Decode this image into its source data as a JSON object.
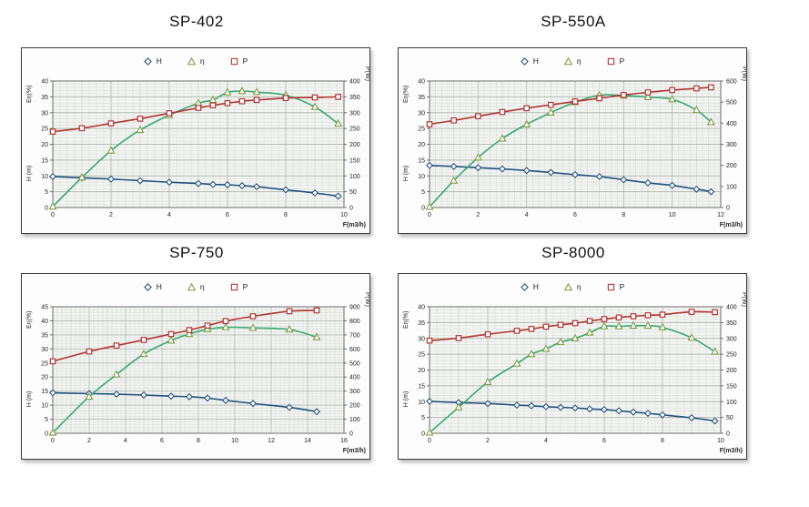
{
  "colors": {
    "h_line": "#24527f",
    "h_marker": "#24527f",
    "eta_line": "#36a873",
    "eta_marker": "#7d9b3e",
    "p_line": "#b23430",
    "p_marker": "#b23430",
    "plot_bg": "#f3f5f2",
    "plot_border": "#6b6b6b",
    "grid_minor": "#d9dcd8",
    "grid_unit": "#c6cac4",
    "grid_major": "#b2b8b0",
    "text": "#222222"
  },
  "chart_data": [
    {
      "type": "line",
      "title": "SP-402",
      "legend": [
        {
          "name": "H",
          "marker": "diamond"
        },
        {
          "name": "η",
          "marker": "triangle"
        },
        {
          "name": "P",
          "marker": "square"
        }
      ],
      "legend_position": "top-center",
      "grid": true,
      "x_axis": {
        "label": "F(m3/h)",
        "min": 0,
        "max": 10,
        "ticks": [
          0,
          2,
          4,
          6,
          8,
          10
        ],
        "minor_step": 0.25
      },
      "y_left_axis": {
        "label_top": "Eη(%)",
        "label_bottom": "H (m)",
        "min": 0,
        "max": 40,
        "ticks": [
          0,
          5,
          10,
          15,
          20,
          25,
          30,
          35,
          40
        ],
        "minor_step": 1
      },
      "y_right_axis": {
        "label": "P(W)",
        "min": 0,
        "max": 400,
        "ticks": [
          0,
          50,
          100,
          150,
          200,
          250,
          300,
          350,
          400
        ]
      },
      "series": [
        {
          "name": "H",
          "axis": "left",
          "marker": "diamond",
          "color_key": "h",
          "x": [
            0,
            1,
            2,
            3,
            4,
            5,
            5.5,
            6,
            6.5,
            7,
            8,
            9,
            9.8
          ],
          "y": [
            9.8,
            9.4,
            9.0,
            8.5,
            8.0,
            7.6,
            7.3,
            7.2,
            6.9,
            6.6,
            5.6,
            4.6,
            3.6
          ]
        },
        {
          "name": "η",
          "axis": "left",
          "marker": "triangle",
          "color_key": "eta",
          "x": [
            0,
            1,
            2,
            3,
            4,
            5,
            5.5,
            6,
            6.5,
            7,
            8,
            9,
            9.8
          ],
          "y": [
            0.3,
            9.5,
            18.0,
            24.5,
            29.2,
            33.0,
            34.0,
            36.4,
            36.8,
            36.5,
            35.5,
            31.8,
            26.5
          ]
        },
        {
          "name": "P",
          "axis": "right",
          "marker": "square",
          "color_key": "p",
          "x": [
            0,
            1,
            2,
            3,
            4,
            5,
            5.5,
            6,
            6.5,
            7,
            8,
            9,
            9.8
          ],
          "y": [
            240,
            251,
            266,
            281,
            298,
            315,
            323,
            330,
            336,
            340,
            346,
            348,
            350
          ]
        }
      ]
    },
    {
      "type": "line",
      "title": "SP-550A",
      "legend": [
        {
          "name": "H",
          "marker": "diamond"
        },
        {
          "name": "η",
          "marker": "triangle"
        },
        {
          "name": "P",
          "marker": "square"
        }
      ],
      "legend_position": "top-center",
      "grid": true,
      "x_axis": {
        "label": "F(m3/h)",
        "min": 0,
        "max": 12,
        "ticks": [
          0,
          2,
          4,
          6,
          8,
          10,
          12
        ],
        "minor_step": 0.25
      },
      "y_left_axis": {
        "label_top": "Eη(%)",
        "label_bottom": "H (m)",
        "min": 0,
        "max": 40,
        "ticks": [
          0,
          5,
          10,
          15,
          20,
          25,
          30,
          35,
          40
        ],
        "minor_step": 1
      },
      "y_right_axis": {
        "label": "P(W)",
        "min": 0,
        "max": 600,
        "ticks": [
          0,
          100,
          200,
          300,
          400,
          500,
          600
        ]
      },
      "series": [
        {
          "name": "H",
          "axis": "left",
          "marker": "diamond",
          "color_key": "h",
          "x": [
            0,
            1,
            2,
            3,
            4,
            5,
            6,
            7,
            8,
            9,
            10,
            11,
            11.6
          ],
          "y": [
            13.3,
            13.0,
            12.6,
            12.2,
            11.7,
            11.1,
            10.4,
            9.8,
            8.8,
            7.8,
            7.0,
            5.8,
            5.0
          ]
        },
        {
          "name": "η",
          "axis": "left",
          "marker": "triangle",
          "color_key": "eta",
          "x": [
            0,
            1,
            2,
            3,
            4,
            5,
            6,
            7,
            8,
            9,
            10,
            11,
            11.6
          ],
          "y": [
            0.2,
            8.5,
            15.8,
            21.8,
            26.3,
            30.0,
            33.3,
            35.5,
            35.4,
            34.9,
            34.2,
            30.8,
            27.0
          ]
        },
        {
          "name": "P",
          "axis": "right",
          "marker": "square",
          "color_key": "p",
          "x": [
            0,
            1,
            2,
            3,
            4,
            5,
            6,
            7,
            8,
            9,
            10,
            11,
            11.6
          ],
          "y": [
            395,
            413,
            433,
            453,
            471,
            487,
            503,
            518,
            534,
            546,
            557,
            565,
            570
          ]
        }
      ]
    },
    {
      "type": "line",
      "title": "SP-750",
      "legend": [
        {
          "name": "H",
          "marker": "diamond"
        },
        {
          "name": "η",
          "marker": "triangle"
        },
        {
          "name": "P",
          "marker": "square"
        }
      ],
      "legend_position": "top-center",
      "grid": true,
      "x_axis": {
        "label": "F(m3/h)",
        "min": 0,
        "max": 16,
        "ticks": [
          0,
          2,
          4,
          6,
          8,
          10,
          12,
          14,
          16
        ],
        "minor_step": 0.25
      },
      "y_left_axis": {
        "label_top": "Eη(%)",
        "label_bottom": "H (m)",
        "min": 0,
        "max": 45,
        "ticks": [
          0,
          5,
          10,
          15,
          20,
          25,
          30,
          35,
          40,
          45
        ],
        "minor_step": 1
      },
      "y_right_axis": {
        "label": "P(W)",
        "min": 0,
        "max": 900,
        "ticks": [
          0,
          100,
          200,
          300,
          400,
          500,
          600,
          700,
          800,
          900
        ]
      },
      "series": [
        {
          "name": "H",
          "axis": "left",
          "marker": "diamond",
          "color_key": "h",
          "x": [
            0,
            2,
            3.5,
            5,
            6.5,
            7.5,
            8.5,
            9.5,
            11,
            13,
            14.5
          ],
          "y": [
            14.4,
            14.1,
            13.9,
            13.6,
            13.2,
            13.0,
            12.5,
            11.7,
            10.6,
            9.2,
            7.7
          ]
        },
        {
          "name": "η",
          "axis": "left",
          "marker": "triangle",
          "color_key": "eta",
          "x": [
            0,
            2,
            3.5,
            5,
            6.5,
            7.5,
            8.5,
            9.5,
            11,
            13,
            14.5
          ],
          "y": [
            0.2,
            13.0,
            20.9,
            28.2,
            33.0,
            35.3,
            37.0,
            37.7,
            37.5,
            36.9,
            34.2
          ]
        },
        {
          "name": "P",
          "axis": "right",
          "marker": "square",
          "color_key": "p",
          "x": [
            0,
            2,
            3.5,
            5,
            6.5,
            7.5,
            8.5,
            9.5,
            11,
            13,
            14.5
          ],
          "y": [
            512,
            582,
            624,
            664,
            706,
            734,
            766,
            798,
            832,
            868,
            874
          ]
        }
      ]
    },
    {
      "type": "line",
      "title": "SP-8000",
      "legend": [
        {
          "name": "H",
          "marker": "diamond"
        },
        {
          "name": "η",
          "marker": "triangle"
        },
        {
          "name": "P",
          "marker": "square"
        }
      ],
      "legend_position": "top-center",
      "grid": true,
      "x_axis": {
        "label": "F(m3/h)",
        "min": 0,
        "max": 10,
        "ticks": [
          0,
          2,
          4,
          6,
          8,
          10
        ],
        "minor_step": 0.25
      },
      "y_left_axis": {
        "label_top": "Eη(%)",
        "label_bottom": "H (m)",
        "min": 0,
        "max": 40,
        "ticks": [
          0,
          5,
          10,
          15,
          20,
          25,
          30,
          35,
          40
        ],
        "minor_step": 1
      },
      "y_right_axis": {
        "label": "P(W)",
        "min": 0,
        "max": 400,
        "ticks": [
          0,
          50,
          100,
          150,
          200,
          250,
          300,
          350,
          400
        ]
      },
      "series": [
        {
          "name": "H",
          "axis": "left",
          "marker": "diamond",
          "color_key": "h",
          "x": [
            0,
            1,
            2,
            3,
            3.5,
            4,
            4.5,
            5,
            5.5,
            6,
            6.5,
            7,
            7.5,
            8,
            9,
            9.8
          ],
          "y": [
            10.1,
            9.7,
            9.4,
            8.9,
            8.7,
            8.4,
            8.2,
            8.0,
            7.7,
            7.5,
            7.1,
            6.7,
            6.3,
            5.8,
            4.9,
            3.9
          ]
        },
        {
          "name": "η",
          "axis": "left",
          "marker": "triangle",
          "color_key": "eta",
          "x": [
            0,
            1,
            2,
            3,
            3.5,
            4,
            4.5,
            5,
            5.5,
            6,
            6.5,
            7,
            7.5,
            8,
            9,
            9.8
          ],
          "y": [
            0.2,
            8.2,
            16.2,
            22.0,
            25.0,
            26.7,
            28.8,
            30.0,
            31.8,
            33.8,
            33.8,
            34.0,
            34.0,
            33.5,
            30.2,
            25.8
          ]
        },
        {
          "name": "P",
          "axis": "right",
          "marker": "square",
          "color_key": "p",
          "x": [
            0,
            1,
            2,
            3,
            3.5,
            4,
            4.5,
            5,
            5.5,
            6,
            6.5,
            7,
            7.5,
            8,
            9,
            9.8
          ],
          "y": [
            293,
            301,
            313,
            324,
            330,
            337,
            343,
            348,
            355,
            361,
            366,
            370,
            373,
            375,
            384,
            383
          ]
        }
      ]
    }
  ]
}
